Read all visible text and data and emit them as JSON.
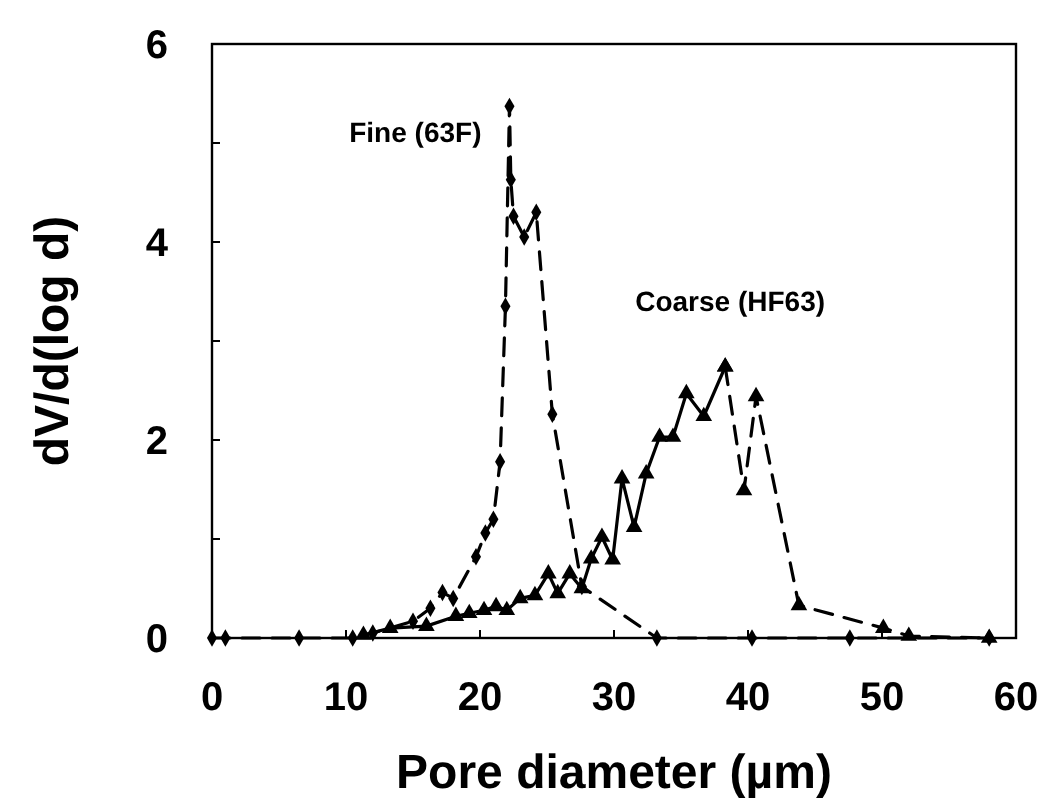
{
  "chart_data": {
    "type": "line",
    "xlabel": "Pore diameter (µm)",
    "ylabel": "dV/d(log d)",
    "xlim": [
      0,
      60
    ],
    "xticks": [
      0,
      10,
      20,
      30,
      40,
      50,
      60
    ],
    "ylim": [
      0,
      6
    ],
    "yticks": [
      0,
      {
        "value": 1,
        "label": null
      },
      2,
      {
        "value": 3,
        "label": null
      },
      4,
      {
        "value": 5,
        "label": null
      },
      6
    ],
    "grid": false,
    "legend": false,
    "series": [
      {
        "name": "Fine (63F)",
        "color": "#000000",
        "marker": "diamond",
        "line_style": "dashed",
        "x": [
          0,
          1,
          6.5,
          10.5,
          12,
          15,
          16.3,
          17.2,
          18,
          19.7,
          20.4,
          21,
          21.5,
          21.9,
          22.2,
          22.3,
          22.5,
          23.3,
          24.2,
          25.4,
          27.6,
          33.2,
          40.3,
          47.6,
          58
        ],
        "values": [
          0,
          0,
          0,
          0,
          0.05,
          0.17,
          0.3,
          0.46,
          0.4,
          0.82,
          1.06,
          1.2,
          1.78,
          3.35,
          5.37,
          4.63,
          4.26,
          4.05,
          4.3,
          2.26,
          0.52,
          0,
          0,
          0,
          0
        ]
      },
      {
        "name": "Coarse (HF63)",
        "color": "#000000",
        "marker": "triangle",
        "line_style": "solid",
        "x": [
          11.3,
          13.3,
          16,
          18.2,
          19.2,
          20.3,
          21.2,
          22,
          23,
          24.1,
          25.1,
          25.8,
          26.7,
          27.6,
          28.3,
          29.1,
          29.9,
          30.6,
          31.5,
          32.4,
          33.4,
          34.4,
          35.4,
          36.7,
          38.3
        ],
        "values": [
          0.03,
          0.1,
          0.12,
          0.22,
          0.25,
          0.28,
          0.32,
          0.28,
          0.4,
          0.43,
          0.65,
          0.45,
          0.65,
          0.5,
          0.8,
          1.02,
          0.79,
          1.61,
          1.12,
          1.66,
          2.03,
          2.03,
          2.47,
          2.24,
          2.74
        ]
      },
      {
        "color": "#000000",
        "marker": "triangle",
        "line_style": "dashed",
        "x": [
          38.3,
          39.7,
          40.6,
          43.8,
          50.1,
          52,
          58
        ],
        "values": [
          2.74,
          1.49,
          2.44,
          0.33,
          0.1,
          0.02,
          0
        ]
      }
    ]
  }
}
